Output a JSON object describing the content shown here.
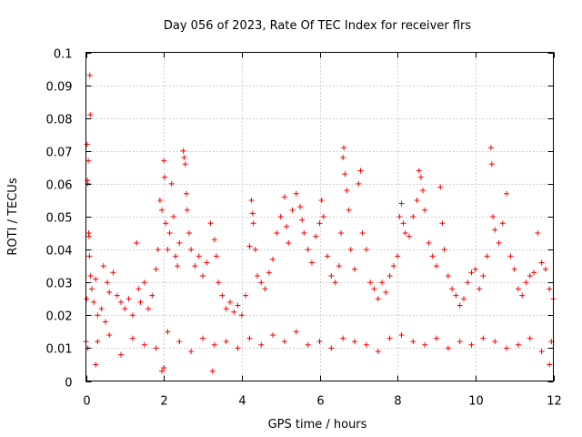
{
  "chart_data": {
    "type": "scatter",
    "title": "Day 056 of 2023, Rate Of TEC Index for receiver flrs",
    "xlabel": "GPS time / hours",
    "ylabel": "ROTI / TECUs",
    "xlim": [
      0,
      12
    ],
    "ylim": [
      0,
      0.1
    ],
    "x_ticks": [
      0,
      2,
      4,
      6,
      8,
      10,
      12
    ],
    "x_tick_labels": [
      "0",
      "2",
      "4",
      "6",
      "8",
      "10",
      "12"
    ],
    "y_ticks": [
      0,
      0.01,
      0.02,
      0.03,
      0.04,
      0.05,
      0.06,
      0.07,
      0.08,
      0.09,
      0.1
    ],
    "y_tick_labels": [
      "0",
      "0.01",
      "0.02",
      "0.03",
      "0.04",
      "0.05",
      "0.06",
      "0.07",
      "0.08",
      "0.09",
      "0.1"
    ],
    "grid": true,
    "marker": "+",
    "marker_color": "#ff0000",
    "series": [
      {
        "name": "ROTI",
        "points": [
          [
            0.0,
            0.012
          ],
          [
            0.02,
            0.025
          ],
          [
            0.03,
            0.072
          ],
          [
            0.04,
            0.061
          ],
          [
            0.05,
            0.06
          ],
          [
            0.06,
            0.067
          ],
          [
            0.07,
            0.045
          ],
          [
            0.08,
            0.044
          ],
          [
            0.09,
            0.038
          ],
          [
            0.1,
            0.093
          ],
          [
            0.11,
            0.081
          ],
          [
            0.12,
            0.032
          ],
          [
            0.15,
            0.028
          ],
          [
            0.2,
            0.024
          ],
          [
            0.25,
            0.031
          ],
          [
            0.3,
            0.02
          ],
          [
            0.4,
            0.022
          ],
          [
            0.45,
            0.035
          ],
          [
            0.5,
            0.018
          ],
          [
            0.55,
            0.03
          ],
          [
            0.6,
            0.027
          ],
          [
            0.7,
            0.033
          ],
          [
            0.8,
            0.026
          ],
          [
            0.9,
            0.024
          ],
          [
            1.0,
            0.022
          ],
          [
            1.1,
            0.025
          ],
          [
            1.2,
            0.02
          ],
          [
            1.3,
            0.042
          ],
          [
            1.35,
            0.028
          ],
          [
            1.4,
            0.024
          ],
          [
            1.5,
            0.03
          ],
          [
            1.6,
            0.022
          ],
          [
            1.7,
            0.026
          ],
          [
            1.8,
            0.034
          ],
          [
            1.85,
            0.04
          ],
          [
            1.9,
            0.055
          ],
          [
            1.95,
            0.052
          ],
          [
            2.0,
            0.067
          ],
          [
            2.02,
            0.062
          ],
          [
            2.05,
            0.048
          ],
          [
            2.1,
            0.04
          ],
          [
            2.15,
            0.045
          ],
          [
            2.2,
            0.06
          ],
          [
            2.25,
            0.05
          ],
          [
            2.3,
            0.038
          ],
          [
            2.35,
            0.035
          ],
          [
            2.4,
            0.042
          ],
          [
            2.5,
            0.07
          ],
          [
            2.52,
            0.068
          ],
          [
            2.55,
            0.066
          ],
          [
            2.58,
            0.057
          ],
          [
            2.6,
            0.052
          ],
          [
            2.65,
            0.045
          ],
          [
            2.7,
            0.04
          ],
          [
            2.8,
            0.035
          ],
          [
            2.9,
            0.038
          ],
          [
            3.0,
            0.032
          ],
          [
            3.1,
            0.036
          ],
          [
            3.2,
            0.048
          ],
          [
            3.3,
            0.043
          ],
          [
            3.35,
            0.038
          ],
          [
            3.4,
            0.03
          ],
          [
            3.5,
            0.026
          ],
          [
            3.6,
            0.022
          ],
          [
            3.7,
            0.024
          ],
          [
            3.8,
            0.021
          ],
          [
            3.9,
            0.023
          ],
          [
            4.0,
            0.02
          ],
          [
            4.1,
            0.026
          ],
          [
            4.2,
            0.041
          ],
          [
            4.25,
            0.055
          ],
          [
            4.28,
            0.051
          ],
          [
            4.3,
            0.048
          ],
          [
            4.35,
            0.04
          ],
          [
            4.4,
            0.032
          ],
          [
            4.5,
            0.03
          ],
          [
            4.6,
            0.028
          ],
          [
            4.7,
            0.033
          ],
          [
            4.8,
            0.037
          ],
          [
            4.9,
            0.045
          ],
          [
            5.0,
            0.05
          ],
          [
            5.1,
            0.056
          ],
          [
            5.15,
            0.047
          ],
          [
            5.2,
            0.042
          ],
          [
            5.3,
            0.052
          ],
          [
            5.4,
            0.057
          ],
          [
            5.5,
            0.053
          ],
          [
            5.55,
            0.049
          ],
          [
            5.6,
            0.045
          ],
          [
            5.7,
            0.04
          ],
          [
            5.8,
            0.036
          ],
          [
            5.9,
            0.044
          ],
          [
            6.0,
            0.048
          ],
          [
            6.05,
            0.055
          ],
          [
            6.1,
            0.05
          ],
          [
            6.2,
            0.038
          ],
          [
            6.3,
            0.032
          ],
          [
            6.4,
            0.03
          ],
          [
            6.5,
            0.035
          ],
          [
            6.55,
            0.045
          ],
          [
            6.6,
            0.068
          ],
          [
            6.62,
            0.071
          ],
          [
            6.65,
            0.063
          ],
          [
            6.7,
            0.058
          ],
          [
            6.75,
            0.052
          ],
          [
            6.8,
            0.04
          ],
          [
            6.9,
            0.034
          ],
          [
            7.0,
            0.06
          ],
          [
            7.05,
            0.064
          ],
          [
            7.1,
            0.045
          ],
          [
            7.2,
            0.04
          ],
          [
            7.3,
            0.03
          ],
          [
            7.4,
            0.028
          ],
          [
            7.5,
            0.025
          ],
          [
            7.6,
            0.03
          ],
          [
            7.7,
            0.027
          ],
          [
            7.8,
            0.032
          ],
          [
            7.9,
            0.035
          ],
          [
            8.0,
            0.038
          ],
          [
            8.05,
            0.05
          ],
          [
            8.1,
            0.054
          ],
          [
            8.15,
            0.048
          ],
          [
            8.2,
            0.045
          ],
          [
            8.3,
            0.044
          ],
          [
            8.4,
            0.05
          ],
          [
            8.5,
            0.055
          ],
          [
            8.55,
            0.064
          ],
          [
            8.6,
            0.062
          ],
          [
            8.65,
            0.058
          ],
          [
            8.7,
            0.052
          ],
          [
            8.8,
            0.042
          ],
          [
            8.9,
            0.038
          ],
          [
            9.0,
            0.035
          ],
          [
            9.1,
            0.059
          ],
          [
            9.15,
            0.048
          ],
          [
            9.2,
            0.04
          ],
          [
            9.3,
            0.032
          ],
          [
            9.4,
            0.028
          ],
          [
            9.5,
            0.026
          ],
          [
            9.6,
            0.023
          ],
          [
            9.7,
            0.025
          ],
          [
            9.8,
            0.03
          ],
          [
            9.9,
            0.033
          ],
          [
            10.0,
            0.034
          ],
          [
            10.1,
            0.028
          ],
          [
            10.2,
            0.032
          ],
          [
            10.3,
            0.038
          ],
          [
            10.4,
            0.071
          ],
          [
            10.42,
            0.066
          ],
          [
            10.45,
            0.05
          ],
          [
            10.5,
            0.046
          ],
          [
            10.6,
            0.042
          ],
          [
            10.7,
            0.048
          ],
          [
            10.8,
            0.057
          ],
          [
            10.9,
            0.038
          ],
          [
            11.0,
            0.034
          ],
          [
            11.1,
            0.028
          ],
          [
            11.2,
            0.026
          ],
          [
            11.3,
            0.03
          ],
          [
            11.4,
            0.032
          ],
          [
            11.5,
            0.033
          ],
          [
            11.6,
            0.045
          ],
          [
            11.7,
            0.036
          ],
          [
            11.8,
            0.034
          ],
          [
            11.9,
            0.028
          ],
          [
            12.0,
            0.025
          ],
          [
            0.05,
            0.01
          ],
          [
            0.3,
            0.012
          ],
          [
            0.6,
            0.014
          ],
          [
            0.9,
            0.008
          ],
          [
            1.2,
            0.013
          ],
          [
            1.5,
            0.011
          ],
          [
            1.8,
            0.01
          ],
          [
            2.1,
            0.015
          ],
          [
            2.4,
            0.012
          ],
          [
            2.7,
            0.009
          ],
          [
            3.0,
            0.013
          ],
          [
            3.3,
            0.011
          ],
          [
            3.6,
            0.012
          ],
          [
            3.9,
            0.01
          ],
          [
            4.2,
            0.013
          ],
          [
            4.5,
            0.011
          ],
          [
            4.8,
            0.014
          ],
          [
            5.1,
            0.012
          ],
          [
            5.4,
            0.015
          ],
          [
            5.7,
            0.011
          ],
          [
            6.0,
            0.012
          ],
          [
            6.3,
            0.01
          ],
          [
            6.6,
            0.013
          ],
          [
            6.9,
            0.012
          ],
          [
            7.2,
            0.011
          ],
          [
            7.5,
            0.009
          ],
          [
            7.8,
            0.013
          ],
          [
            8.1,
            0.014
          ],
          [
            8.4,
            0.012
          ],
          [
            8.7,
            0.011
          ],
          [
            9.0,
            0.013
          ],
          [
            9.3,
            0.01
          ],
          [
            9.6,
            0.012
          ],
          [
            9.9,
            0.011
          ],
          [
            10.2,
            0.013
          ],
          [
            10.5,
            0.012
          ],
          [
            10.8,
            0.01
          ],
          [
            11.1,
            0.011
          ],
          [
            11.4,
            0.013
          ],
          [
            11.7,
            0.009
          ],
          [
            11.95,
            0.012
          ],
          [
            1.95,
            0.003
          ],
          [
            2.0,
            0.004
          ],
          [
            3.25,
            0.003
          ],
          [
            0.25,
            0.005
          ],
          [
            11.9,
            0.005
          ]
        ]
      }
    ]
  }
}
